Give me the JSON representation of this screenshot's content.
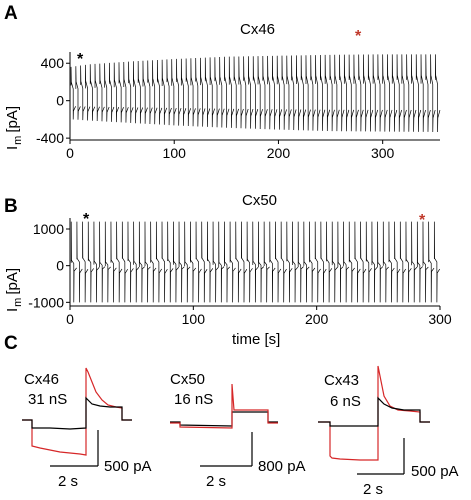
{
  "chart_data": [
    {
      "panel": "A",
      "type": "line",
      "title": "Cx46",
      "ylabel": "I m [pA]",
      "ylabel_main": "I",
      "ylabel_sub": "m",
      "ylabel_unit": "[pA]",
      "xlabel": "",
      "xlim": [
        0,
        355
      ],
      "ylim": [
        -420,
        520
      ],
      "xticks": [
        0,
        100,
        200,
        300
      ],
      "yticks": [
        -400,
        0,
        400
      ],
      "ytick_labels": [
        "-400",
        "0",
        "400"
      ],
      "pulse_period_s": 4.6,
      "envelope": {
        "x": [
          0,
          20,
          60,
          100,
          150,
          200,
          250,
          300,
          355
        ],
        "upper": [
          360,
          390,
          420,
          445,
          470,
          480,
          490,
          495,
          495
        ],
        "lower": [
          -200,
          -215,
          -240,
          -265,
          -290,
          -310,
          -325,
          -330,
          -335
        ]
      },
      "markers": [
        {
          "symbol": "*",
          "color": "#000000",
          "x": 8
        },
        {
          "symbol": "*",
          "color": "#c0392b",
          "x": 280
        }
      ]
    },
    {
      "panel": "B",
      "type": "line",
      "title": "Cx50",
      "ylabel": "I m [pA]",
      "ylabel_main": "I",
      "ylabel_sub": "m",
      "ylabel_unit": "[pA]",
      "xlabel": "time [s]",
      "xlim": [
        0,
        300
      ],
      "ylim": [
        -1100,
        1300
      ],
      "xticks": [
        0,
        100,
        200,
        300
      ],
      "yticks": [
        -1000,
        0,
        1000
      ],
      "ytick_labels": [
        "-1000",
        "0",
        "1000"
      ],
      "pulse_period_s": 4.6,
      "envelope": {
        "x": [
          0,
          50,
          100,
          150,
          200,
          250,
          300
        ],
        "upper": [
          1200,
          1200,
          1200,
          1200,
          1200,
          1200,
          1200
        ],
        "lower": [
          -1000,
          -1000,
          -1000,
          -1000,
          -1000,
          -1000,
          -1000
        ]
      },
      "markers": [
        {
          "symbol": "*",
          "color": "#000000",
          "x": 14
        },
        {
          "symbol": "*",
          "color": "#c0392b",
          "x": 278
        }
      ]
    }
  ],
  "panelA": {
    "letter": "A",
    "title": "Cx46",
    "star": "*"
  },
  "panelB": {
    "letter": "B",
    "title": "Cx50",
    "xlabel": "time [s]",
    "star": "*"
  },
  "panelC": {
    "letter": "C",
    "traces": [
      {
        "name": "Cx46",
        "conductance": "31 nS",
        "scale_y": "500 pA",
        "scale_x": "2 s",
        "colors": {
          "black": "#000000",
          "red": "#d62728"
        }
      },
      {
        "name": "Cx50",
        "conductance": "16 nS",
        "scale_y": "800 pA",
        "scale_x": "2 s",
        "colors": {
          "black": "#000000",
          "red": "#d62728"
        }
      },
      {
        "name": "Cx43",
        "conductance": "6 nS",
        "scale_y": "500 pA",
        "scale_x": "2 s",
        "colors": {
          "black": "#000000",
          "red": "#d62728"
        }
      }
    ]
  }
}
